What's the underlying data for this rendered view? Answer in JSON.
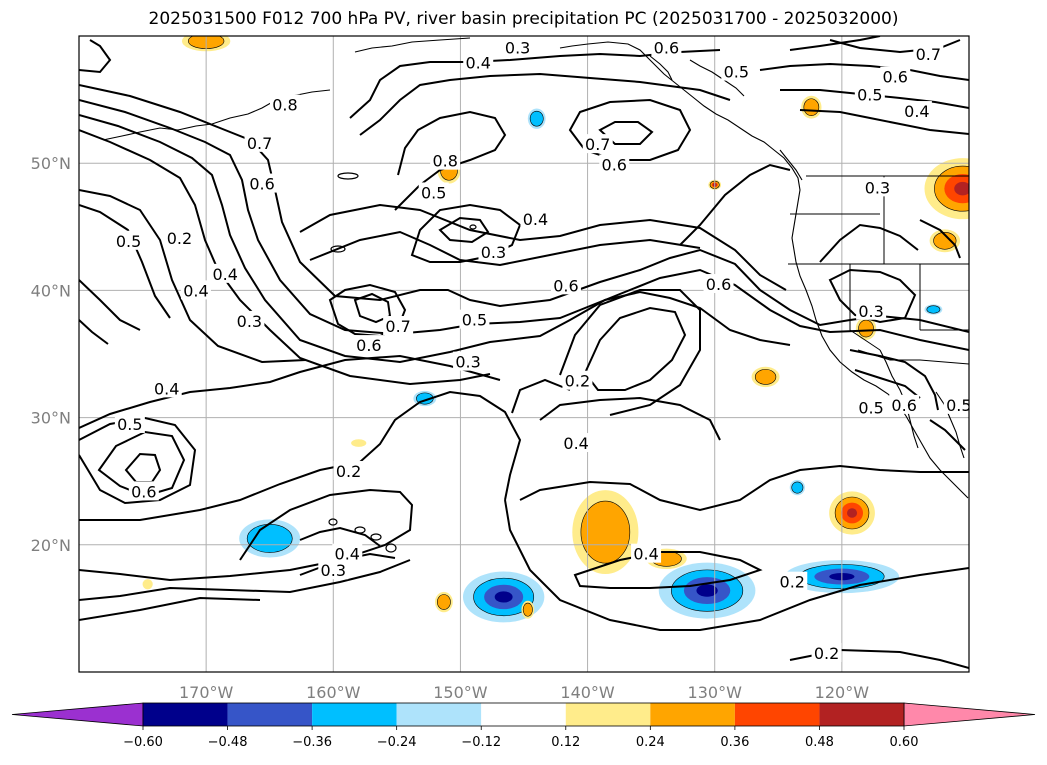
{
  "title": "2025031500 F012 700 hPa PV, river basin precipitation PC (2025031700 - 2025032000)",
  "map": {
    "lon_range": [
      -180,
      -110
    ],
    "lat_range": [
      10,
      60
    ],
    "lon_ticks": [
      {
        "value": -170,
        "label": "170°W"
      },
      {
        "value": -160,
        "label": "160°W"
      },
      {
        "value": -150,
        "label": "150°W"
      },
      {
        "value": -140,
        "label": "140°W"
      },
      {
        "value": -130,
        "label": "130°W"
      },
      {
        "value": -120,
        "label": "120°W"
      }
    ],
    "lat_ticks": [
      {
        "value": 20,
        "label": "20°N"
      },
      {
        "value": 30,
        "label": "30°N"
      },
      {
        "value": 40,
        "label": "40°N"
      },
      {
        "value": 50,
        "label": "50°N"
      }
    ],
    "gridlines": true,
    "contour_variable": "700 hPa PV",
    "contour_labels": [
      {
        "lon": -145.5,
        "lat": 59.1,
        "text": "0.3"
      },
      {
        "lon": -133.8,
        "lat": 59.1,
        "text": "0.6"
      },
      {
        "lon": -128.3,
        "lat": 57.2,
        "text": "0.5"
      },
      {
        "lon": -113.2,
        "lat": 58.6,
        "text": "0.7"
      },
      {
        "lon": -115.8,
        "lat": 56.8,
        "text": "0.6"
      },
      {
        "lon": -117.8,
        "lat": 55.4,
        "text": "0.5"
      },
      {
        "lon": -114.1,
        "lat": 54.1,
        "text": "0.4"
      },
      {
        "lon": -148.6,
        "lat": 57.9,
        "text": "0.4"
      },
      {
        "lon": -163.8,
        "lat": 54.6,
        "text": "0.8"
      },
      {
        "lon": -165.8,
        "lat": 51.6,
        "text": "0.7"
      },
      {
        "lon": -165.6,
        "lat": 48.4,
        "text": "0.6"
      },
      {
        "lon": -176.1,
        "lat": 43.9,
        "text": "0.5"
      },
      {
        "lon": -172.1,
        "lat": 44.1,
        "text": "0.2"
      },
      {
        "lon": -170.8,
        "lat": 40.0,
        "text": "0.4"
      },
      {
        "lon": -168.5,
        "lat": 41.3,
        "text": "0.4"
      },
      {
        "lon": -166.6,
        "lat": 37.6,
        "text": "0.3"
      },
      {
        "lon": -151.2,
        "lat": 50.2,
        "text": "0.8"
      },
      {
        "lon": -152.1,
        "lat": 47.7,
        "text": "0.5"
      },
      {
        "lon": -139.2,
        "lat": 51.5,
        "text": "0.7"
      },
      {
        "lon": -137.9,
        "lat": 49.9,
        "text": "0.6"
      },
      {
        "lon": -144.1,
        "lat": 45.6,
        "text": "0.4"
      },
      {
        "lon": -147.4,
        "lat": 43.0,
        "text": "0.3"
      },
      {
        "lon": -141.7,
        "lat": 40.4,
        "text": "0.6"
      },
      {
        "lon": -154.9,
        "lat": 37.2,
        "text": "0.7"
      },
      {
        "lon": -157.2,
        "lat": 35.7,
        "text": "0.6"
      },
      {
        "lon": -148.9,
        "lat": 37.7,
        "text": "0.5"
      },
      {
        "lon": -129.7,
        "lat": 40.5,
        "text": "0.6"
      },
      {
        "lon": -117.2,
        "lat": 48.1,
        "text": "0.3"
      },
      {
        "lon": -117.7,
        "lat": 38.4,
        "text": "0.3"
      },
      {
        "lon": -149.4,
        "lat": 34.4,
        "text": "0.3"
      },
      {
        "lon": -140.8,
        "lat": 32.9,
        "text": "0.2"
      },
      {
        "lon": -140.9,
        "lat": 28.0,
        "text": "0.4"
      },
      {
        "lon": -117.7,
        "lat": 30.8,
        "text": "0.5"
      },
      {
        "lon": -115.1,
        "lat": 31.0,
        "text": "0.6"
      },
      {
        "lon": -110.8,
        "lat": 31.0,
        "text": "0.5"
      },
      {
        "lon": -173.1,
        "lat": 32.3,
        "text": "0.4"
      },
      {
        "lon": -176.0,
        "lat": 29.5,
        "text": "0.5"
      },
      {
        "lon": -174.9,
        "lat": 24.2,
        "text": "0.6"
      },
      {
        "lon": -158.8,
        "lat": 25.8,
        "text": "0.2"
      },
      {
        "lon": -158.9,
        "lat": 19.3,
        "text": "0.4"
      },
      {
        "lon": -160.0,
        "lat": 18.0,
        "text": "0.3"
      },
      {
        "lon": -135.4,
        "lat": 19.3,
        "text": "0.4"
      },
      {
        "lon": -123.9,
        "lat": 17.1,
        "text": "0.2"
      },
      {
        "lon": -121.2,
        "lat": 11.5,
        "text": "0.2"
      }
    ]
  },
  "precipitation_shading": [
    {
      "type": "neg-high",
      "lon": -146.6,
      "lat": 15.9,
      "rx": 3.2,
      "ry": 2.0,
      "value": -0.4
    },
    {
      "type": "neg-high",
      "lon": -130.6,
      "lat": 16.4,
      "rx": 3.8,
      "ry": 2.2,
      "value": -0.45
    },
    {
      "type": "neg-high",
      "lon": -120.0,
      "lat": 17.5,
      "rx": 4.5,
      "ry": 1.3,
      "value": -0.4
    },
    {
      "type": "neg-mid",
      "lon": -165.0,
      "lat": 20.5,
      "rx": 2.4,
      "ry": 1.5,
      "value": -0.3
    },
    {
      "type": "neg-mid",
      "lon": -144.0,
      "lat": 53.5,
      "rx": 0.7,
      "ry": 0.8,
      "value": -0.28
    },
    {
      "type": "neg-mid",
      "lon": -152.8,
      "lat": 31.5,
      "rx": 0.9,
      "ry": 0.6,
      "value": -0.27
    },
    {
      "type": "neg-mid",
      "lon": -123.5,
      "lat": 24.5,
      "rx": 0.6,
      "ry": 0.6,
      "value": -0.26
    },
    {
      "type": "neg-mid",
      "lon": -112.8,
      "lat": 38.5,
      "rx": 0.7,
      "ry": 0.4,
      "value": -0.25
    },
    {
      "type": "pos-high",
      "lon": -130.0,
      "lat": 48.3,
      "rx": 0.5,
      "ry": 0.4,
      "value": 0.4
    },
    {
      "type": "pos-high",
      "lon": -110.5,
      "lat": 48.0,
      "rx": 3.0,
      "ry": 2.4,
      "value": 0.5
    },
    {
      "type": "pos-high",
      "lon": -119.2,
      "lat": 22.5,
      "rx": 1.8,
      "ry": 1.7,
      "value": 0.4
    },
    {
      "type": "pos-mid",
      "lon": -138.6,
      "lat": 21.0,
      "rx": 2.6,
      "ry": 3.3,
      "value": 0.3
    },
    {
      "type": "pos-mid",
      "lon": -133.8,
      "lat": 18.9,
      "rx": 1.6,
      "ry": 0.8,
      "value": 0.28
    },
    {
      "type": "pos-mid",
      "lon": -150.9,
      "lat": 49.4,
      "rx": 0.9,
      "ry": 1.0,
      "value": 0.28
    },
    {
      "type": "pos-mid",
      "lon": -170.0,
      "lat": 59.6,
      "rx": 1.9,
      "ry": 0.8,
      "value": 0.26
    },
    {
      "type": "pos-mid",
      "lon": -111.9,
      "lat": 43.9,
      "rx": 1.2,
      "ry": 0.9,
      "value": 0.28
    },
    {
      "type": "pos-mid",
      "lon": -122.4,
      "lat": 54.4,
      "rx": 0.8,
      "ry": 0.9,
      "value": 0.26
    },
    {
      "type": "pos-mid",
      "lon": -118.1,
      "lat": 37.0,
      "rx": 0.8,
      "ry": 0.9,
      "value": 0.26
    },
    {
      "type": "pos-mid",
      "lon": -126.0,
      "lat": 33.2,
      "rx": 1.1,
      "ry": 0.8,
      "value": 0.26
    },
    {
      "type": "pos-mid",
      "lon": -151.3,
      "lat": 15.5,
      "rx": 0.7,
      "ry": 0.8,
      "value": 0.25
    },
    {
      "type": "pos-mid",
      "lon": -144.7,
      "lat": 14.9,
      "rx": 0.5,
      "ry": 0.7,
      "value": 0.25
    },
    {
      "type": "pos-low",
      "lon": -174.6,
      "lat": 16.9,
      "rx": 0.4,
      "ry": 0.4,
      "value": 0.18
    },
    {
      "type": "pos-low",
      "lon": -158.0,
      "lat": 28.0,
      "rx": 0.6,
      "ry": 0.3,
      "value": 0.18
    }
  ],
  "colorbar": {
    "colors": [
      "#9b30d0",
      "#00008b",
      "#3655c8",
      "#00bfff",
      "#aee3fb",
      "#ffffff",
      "#ffec8b",
      "#ffa500",
      "#ff4500",
      "#b22222",
      "#ff88aa"
    ],
    "ticks": [
      "−0.60",
      "−0.48",
      "−0.36",
      "−0.24",
      "−0.12",
      "0.12",
      "0.24",
      "0.36",
      "0.48",
      "0.60"
    ]
  }
}
